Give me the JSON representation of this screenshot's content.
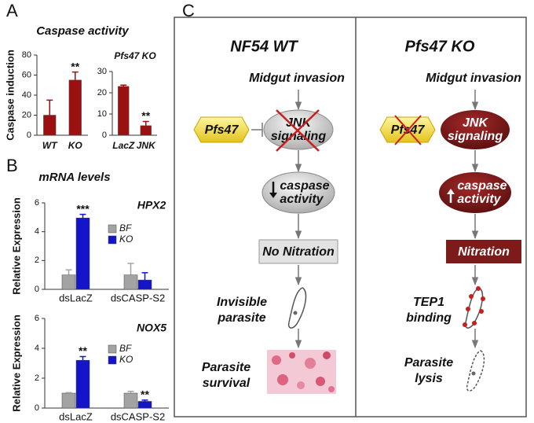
{
  "panels": [
    {
      "label": "A"
    },
    {
      "label": "B",
      "title": "mRNA levels"
    },
    {
      "label": "C"
    }
  ],
  "chart_data": [
    {
      "type": "bar",
      "title": "Caspase activity",
      "ylabel": "Caspase induction",
      "categories": [
        "WT",
        "KO"
      ],
      "values": [
        20,
        55
      ],
      "errors": [
        15,
        8
      ],
      "significance": [
        null,
        "**"
      ],
      "color": "#9b1111",
      "ylim": [
        0,
        80
      ],
      "yticks": [
        0,
        20,
        40,
        60,
        80
      ]
    },
    {
      "type": "bar",
      "title": "Pfs47 KO",
      "categories": [
        "LacZ",
        "JNK"
      ],
      "values": [
        23,
        4.5
      ],
      "errors": [
        0.6,
        2
      ],
      "significance": [
        null,
        "**"
      ],
      "color": "#9b1111",
      "ylim": [
        0,
        30
      ],
      "yticks": [
        0,
        10,
        20,
        30
      ]
    },
    {
      "type": "grouped_bar",
      "title": "HPX2",
      "ylabel": "Relative Expression",
      "categories": [
        "dsLacZ",
        "dsCASP-S2"
      ],
      "series": [
        {
          "name": "BF",
          "color": "#a3a3a3",
          "values": [
            1,
            1
          ],
          "errors": [
            0.35,
            0.8
          ],
          "significance": [
            null,
            null
          ]
        },
        {
          "name": "KO",
          "color": "#1414c8",
          "values": [
            4.95,
            0.65
          ],
          "errors": [
            0.25,
            0.5
          ],
          "significance": [
            "***",
            null
          ]
        }
      ],
      "ylim": [
        0,
        6
      ],
      "yticks": [
        0,
        2,
        4,
        6
      ]
    },
    {
      "type": "grouped_bar",
      "title": "NOX5",
      "ylabel": "Relative Expression",
      "categories": [
        "dsLacZ",
        "dsCASP-S2"
      ],
      "series": [
        {
          "name": "BF",
          "color": "#a3a3a3",
          "values": [
            1,
            1
          ],
          "errors": [
            0.03,
            0.12
          ],
          "significance": [
            null,
            null
          ]
        },
        {
          "name": "KO",
          "color": "#1414c8",
          "values": [
            3.2,
            0.45
          ],
          "errors": [
            0.25,
            0.08
          ],
          "significance": [
            "**",
            "**"
          ]
        }
      ],
      "ylim": [
        0,
        6
      ],
      "yticks": [
        0,
        2,
        4,
        6
      ]
    }
  ],
  "diagram": {
    "columns": [
      {
        "title": "NF54 WT",
        "trigger": "Midgut invasion",
        "inhibitor": "Pfs47",
        "pathway": [
          "JNK",
          "signaling"
        ],
        "caspase": [
          "caspase",
          "activity"
        ],
        "nitration": "No Nitration",
        "outcome_1": [
          "Invisible",
          "parasite"
        ],
        "outcome_2": [
          "Parasite",
          "survival"
        ]
      },
      {
        "title": "Pfs47 KO",
        "trigger": "Midgut invasion",
        "inhibitor": "Pfs47",
        "pathway": [
          "JNK",
          "signaling"
        ],
        "caspase": [
          "caspase",
          "activity"
        ],
        "nitration": "Nitration",
        "outcome_1": [
          "TEP1",
          "binding"
        ],
        "outcome_2": [
          "Parasite",
          "lysis"
        ]
      }
    ]
  }
}
